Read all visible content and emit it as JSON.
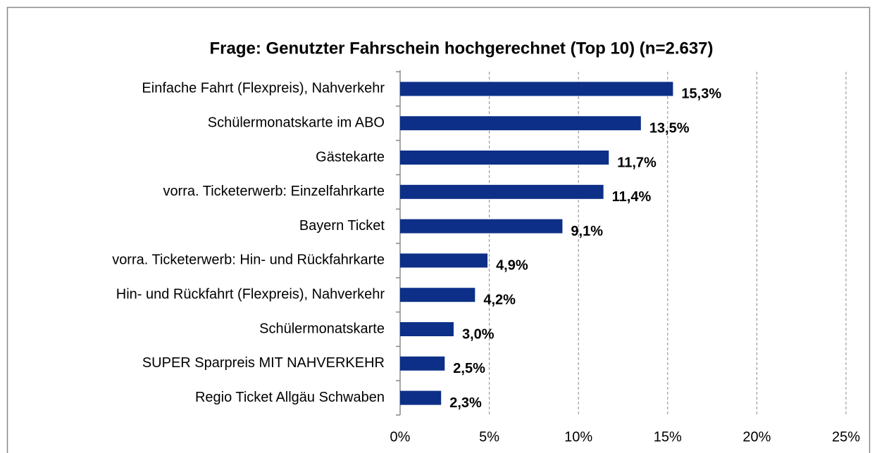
{
  "chart_data": {
    "type": "bar",
    "orientation": "horizontal",
    "title": "Frage: Genutzter Fahrschein hochgerechnet  (Top 10) (n=2.637)",
    "categories": [
      "Einfache Fahrt (Flexpreis), Nahverkehr",
      "Schülermonatskarte im ABO",
      "Gästekarte",
      "vorra. Ticketerwerb: Einzelfahrkarte",
      "Bayern Ticket",
      "vorra. Ticketerwerb: Hin- und Rückfahrkarte",
      "Hin- und Rückfahrt (Flexpreis), Nahverkehr",
      "Schülermonatskarte",
      "SUPER Sparpreis MIT NAHVERKEHR",
      "Regio Ticket Allgäu Schwaben"
    ],
    "values": [
      15.3,
      13.5,
      11.7,
      11.4,
      9.1,
      4.9,
      4.2,
      3.0,
      2.5,
      2.3
    ],
    "value_labels": [
      "15,3%",
      "13,5%",
      "11,7%",
      "11,4%",
      "9,1%",
      "4,9%",
      "4,2%",
      "3,0%",
      "2,5%",
      "2,3%"
    ],
    "color": "#0d2f87",
    "xlim": [
      0,
      25
    ],
    "xticks": [
      {
        "value": 0,
        "label": "0%"
      },
      {
        "value": 5,
        "label": "5%"
      },
      {
        "value": 10,
        "label": "10%"
      },
      {
        "value": 15,
        "label": "15%"
      },
      {
        "value": 20,
        "label": "20%"
      },
      {
        "value": 25,
        "label": "25%"
      }
    ],
    "grid": true
  }
}
